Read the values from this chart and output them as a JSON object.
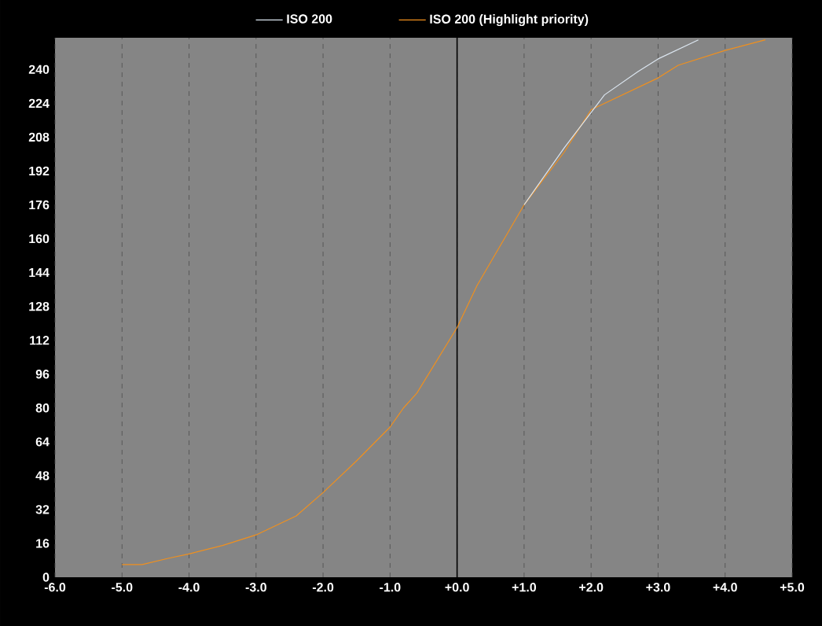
{
  "chart_data": {
    "type": "line",
    "series": [
      {
        "name": "ISO 200",
        "color": "#dce6f0",
        "x": [
          1.0,
          1.6,
          2.2,
          2.7,
          3.0,
          3.6
        ],
        "values": [
          176,
          203,
          228,
          239,
          245,
          254
        ]
      },
      {
        "name": "ISO 200 (Highlight priority)",
        "color": "#f0901e",
        "x": [
          -5.0,
          -4.7,
          -4.3,
          -4.0,
          -3.5,
          -3.0,
          -2.4,
          -2.0,
          -1.5,
          -1.0,
          -0.8,
          -0.6,
          0.0,
          0.3,
          1.0,
          1.6,
          2.0,
          3.0,
          3.3,
          4.0,
          4.6
        ],
        "values": [
          6,
          6,
          9,
          11,
          15,
          20,
          29,
          40,
          55,
          71,
          80,
          87,
          118,
          138,
          176,
          201,
          221,
          236,
          242,
          249,
          254
        ]
      }
    ],
    "xlim": [
      -6,
      5
    ],
    "ylim": [
      0,
      255
    ],
    "xticks": [
      {
        "value": -6,
        "label": "-6.0"
      },
      {
        "value": -5,
        "label": "-5.0"
      },
      {
        "value": -4,
        "label": "-4.0"
      },
      {
        "value": -3,
        "label": "-3.0"
      },
      {
        "value": -2,
        "label": "-2.0"
      },
      {
        "value": -1,
        "label": "-1.0"
      },
      {
        "value": 0,
        "label": "+0.0"
      },
      {
        "value": 1,
        "label": "+1.0"
      },
      {
        "value": 2,
        "label": "+2.0"
      },
      {
        "value": 3,
        "label": "+3.0"
      },
      {
        "value": 4,
        "label": "+4.0"
      },
      {
        "value": 5,
        "label": "+5.0"
      }
    ],
    "yticks": [
      0,
      16,
      32,
      48,
      64,
      80,
      96,
      112,
      128,
      144,
      160,
      176,
      192,
      208,
      224,
      240
    ],
    "ref_lines": [
      {
        "axis": "x",
        "value": 0,
        "color": "#000000"
      }
    ],
    "grid": "x",
    "legend": "top",
    "marker": "none",
    "line_style": "solid"
  }
}
